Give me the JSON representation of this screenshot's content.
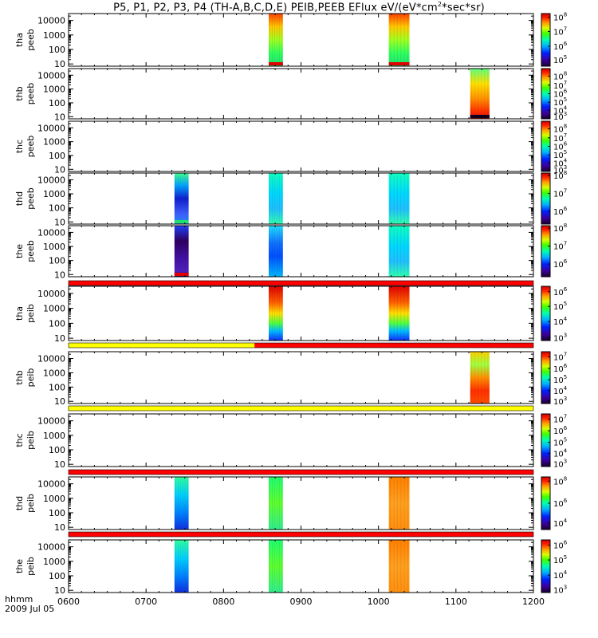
{
  "title_text": "P5, P1, P2, P3, P4 (TH-A,B,C,D,E) PEIB,PEEB EFlux eV/(eV*cm",
  "title_sup": "2",
  "title_end": "*sec*sr)",
  "time_axis_label": "hhmm",
  "date_label": "2009 Jul 05",
  "chart_data": {
    "type": "heatmap",
    "x_ticks": [
      "0600",
      "0700",
      "0800",
      "0900",
      "1000",
      "1100",
      "1200"
    ],
    "x_range": [
      "0600",
      "1200"
    ],
    "y_scale": "log",
    "y_ticks": [
      "10",
      "100",
      "1000",
      "10000"
    ],
    "panels": [
      {
        "probe": "tha",
        "product": "peeb",
        "ylim": [
          7,
          30000
        ],
        "cbar_ticks": [
          {
            "exp": 5,
            "pos": 0.12
          },
          {
            "exp": 6,
            "pos": 0.38
          },
          {
            "exp": 7,
            "pos": 0.66
          },
          {
            "exp": 8,
            "pos": 0.93
          }
        ],
        "blocks": [
          {
            "t0": "0835",
            "t1": "0846",
            "style": "warm",
            "floor": "red"
          },
          {
            "t0": "1008",
            "t1": "1024",
            "style": "warm",
            "floor": "red"
          }
        ]
      },
      {
        "probe": "thb",
        "product": "peeb",
        "ylim": [
          7,
          30000
        ],
        "cbar_ticks": [
          {
            "exp": 3,
            "pos": 0.05
          },
          {
            "exp": 4,
            "pos": 0.17
          },
          {
            "exp": 5,
            "pos": 0.33
          },
          {
            "exp": 6,
            "pos": 0.5
          },
          {
            "exp": 7,
            "pos": 0.67
          },
          {
            "exp": 8,
            "pos": 0.85
          }
        ],
        "blocks": [
          {
            "t0": "1111",
            "t1": "1126",
            "style": "mix",
            "floor": "dark"
          }
        ]
      },
      {
        "probe": "thc",
        "product": "peeb",
        "ylim": [
          7,
          30000
        ],
        "cbar_ticks": [
          {
            "exp": 3,
            "pos": 0.03
          },
          {
            "exp": 4,
            "pos": 0.17
          },
          {
            "exp": 5,
            "pos": 0.33
          },
          {
            "exp": 6,
            "pos": 0.5
          },
          {
            "exp": 7,
            "pos": 0.67
          },
          {
            "exp": 8,
            "pos": 0.85
          }
        ],
        "blocks": []
      },
      {
        "probe": "thd",
        "product": "peeb",
        "ylim": [
          7,
          30000
        ],
        "cbar_ticks": [
          {
            "exp": 6,
            "pos": 0.25
          },
          {
            "exp": 7,
            "pos": 0.6
          },
          {
            "exp": 8,
            "pos": 0.95
          }
        ],
        "blocks": [
          {
            "t0": "0722",
            "t1": "0733",
            "style": "cool-dark",
            "floor": "green"
          },
          {
            "t0": "0835",
            "t1": "0846",
            "style": "cyan",
            "floor": "none"
          },
          {
            "t0": "1008",
            "t1": "1024",
            "style": "cyan",
            "floor": "none"
          }
        ]
      },
      {
        "probe": "the",
        "product": "peeb",
        "ylim": [
          7,
          30000
        ],
        "cbar_ticks": [
          {
            "exp": 6,
            "pos": 0.25
          },
          {
            "exp": 7,
            "pos": 0.6
          },
          {
            "exp": 8,
            "pos": 0.95
          }
        ],
        "blocks": [
          {
            "t0": "0722",
            "t1": "0733",
            "style": "dark",
            "floor": "red"
          },
          {
            "t0": "0835",
            "t1": "0846",
            "style": "blue-cyan",
            "floor": "none"
          },
          {
            "t0": "1008",
            "t1": "1024",
            "style": "cyan",
            "floor": "none"
          }
        ]
      },
      {
        "probe": "tha",
        "product": "peib",
        "ylim": [
          7,
          30000
        ],
        "cbar_ticks": [
          {
            "exp": 3,
            "pos": 0.05
          },
          {
            "exp": 4,
            "pos": 0.35
          },
          {
            "exp": 5,
            "pos": 0.63
          },
          {
            "exp": 6,
            "pos": 0.9
          }
        ],
        "blocks": [
          {
            "t0": "0835",
            "t1": "0846",
            "style": "ion",
            "floor": "none"
          },
          {
            "t0": "1008",
            "t1": "1024",
            "style": "ion",
            "floor": "none"
          }
        ]
      },
      {
        "probe": "thb",
        "product": "peib",
        "ylim": [
          7,
          30000
        ],
        "cbar_ticks": [
          {
            "exp": 3,
            "pos": 0.05
          },
          {
            "exp": 4,
            "pos": 0.25
          },
          {
            "exp": 5,
            "pos": 0.46
          },
          {
            "exp": 6,
            "pos": 0.68
          },
          {
            "exp": 7,
            "pos": 0.9
          }
        ],
        "blocks": [
          {
            "t0": "1111",
            "t1": "1126",
            "style": "ion-mix",
            "floor": "none"
          }
        ]
      },
      {
        "probe": "thc",
        "product": "peib",
        "ylim": [
          7,
          30000
        ],
        "cbar_ticks": [
          {
            "exp": 3,
            "pos": 0.05
          },
          {
            "exp": 4,
            "pos": 0.25
          },
          {
            "exp": 5,
            "pos": 0.46
          },
          {
            "exp": 6,
            "pos": 0.68
          },
          {
            "exp": 7,
            "pos": 0.9
          }
        ],
        "blocks": []
      },
      {
        "probe": "thd",
        "product": "peib",
        "ylim": [
          7,
          30000
        ],
        "cbar_ticks": [
          {
            "exp": 4,
            "pos": 0.12
          },
          {
            "exp": 6,
            "pos": 0.5
          },
          {
            "exp": 8,
            "pos": 0.92
          }
        ],
        "blocks": [
          {
            "t0": "0722",
            "t1": "0733",
            "style": "ion-blue",
            "floor": "none"
          },
          {
            "t0": "0835",
            "t1": "0846",
            "style": "ion-green",
            "floor": "none"
          },
          {
            "t0": "1008",
            "t1": "1024",
            "style": "ion-orange",
            "floor": "none"
          }
        ]
      },
      {
        "probe": "the",
        "product": "peib",
        "ylim": [
          7,
          30000
        ],
        "cbar_ticks": [
          {
            "exp": 3,
            "pos": 0.05
          },
          {
            "exp": 4,
            "pos": 0.33
          },
          {
            "exp": 5,
            "pos": 0.62
          },
          {
            "exp": 6,
            "pos": 0.9
          }
        ],
        "blocks": [
          {
            "t0": "0722",
            "t1": "0733",
            "style": "ion-blue",
            "floor": "none"
          },
          {
            "t0": "0835",
            "t1": "0846",
            "style": "ion-green",
            "floor": "none"
          },
          {
            "t0": "1008",
            "t1": "1024",
            "style": "ion-orange",
            "floor": "none"
          }
        ]
      }
    ],
    "status_bars": [
      {
        "after_panel": 4,
        "segments": [
          {
            "t0": "0600",
            "t1": "1200",
            "color": "#ff0000"
          }
        ]
      },
      {
        "after_panel": 5,
        "segments": [
          {
            "t0": "0600",
            "t1": "0824",
            "color": "#ffff00"
          },
          {
            "t0": "0824",
            "t1": "1200",
            "color": "#ff0000"
          }
        ]
      },
      {
        "after_panel": 6,
        "segments": [
          {
            "t0": "0600",
            "t1": "1200",
            "color": "#ffff00"
          }
        ]
      },
      {
        "after_panel": 7,
        "segments": [
          {
            "t0": "0600",
            "t1": "1200",
            "color": "#ff0000"
          }
        ]
      },
      {
        "after_panel": 8,
        "segments": [
          {
            "t0": "0600",
            "t1": "1200",
            "color": "#ff0000"
          }
        ]
      }
    ]
  }
}
